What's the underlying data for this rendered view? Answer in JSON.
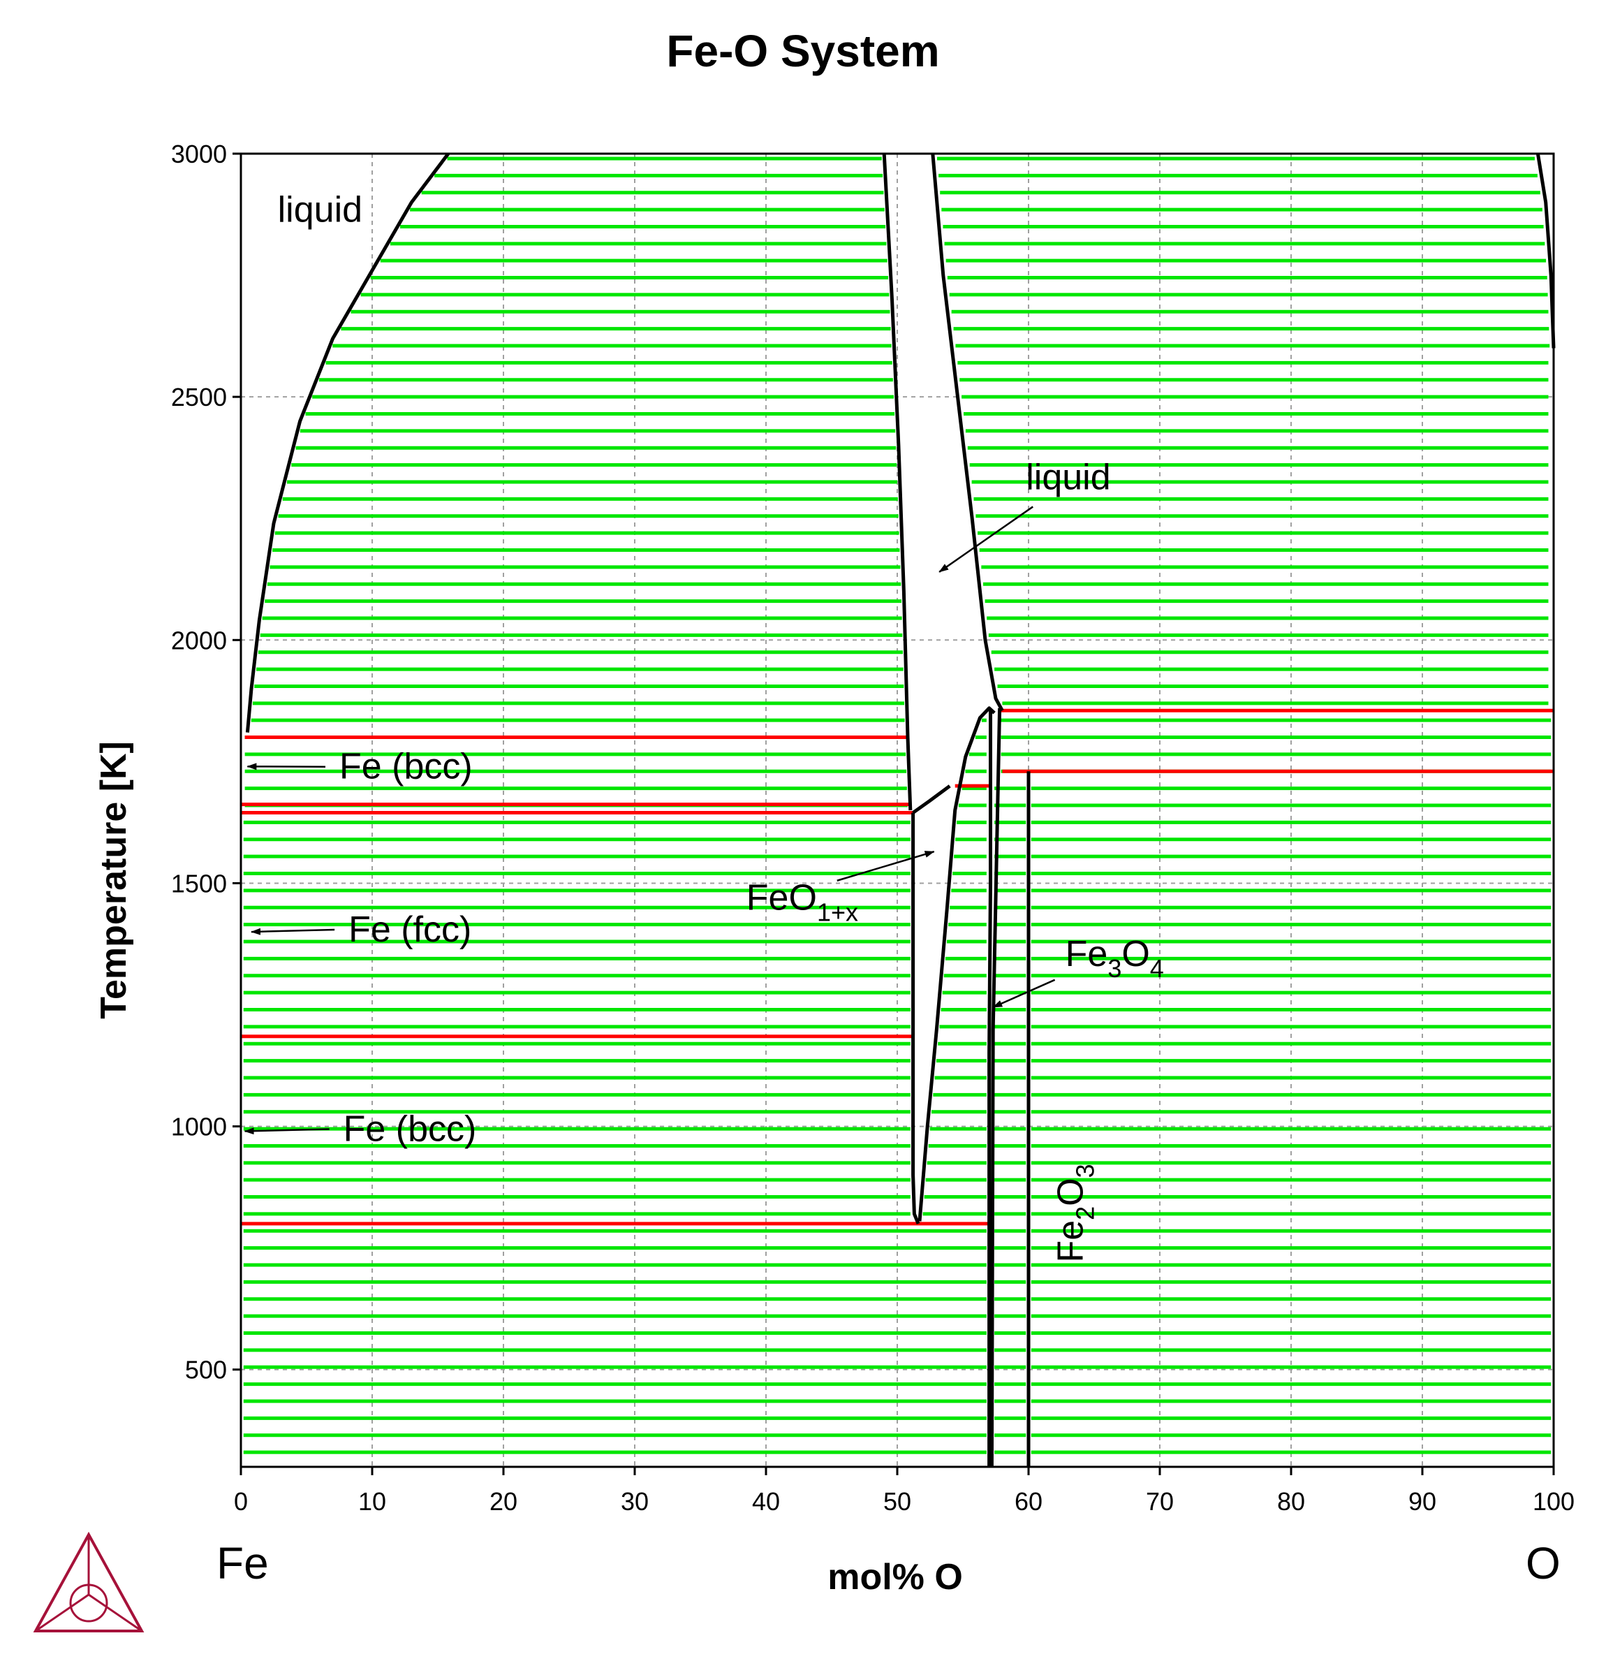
{
  "chart_data": {
    "type": "phase-diagram",
    "title": "Fe-O System",
    "xlabel": "mol% O",
    "ylabel": "Temperature [K]",
    "xlim": [
      0,
      100
    ],
    "ylim": [
      300,
      3000
    ],
    "x_ticks": [
      0,
      10,
      20,
      30,
      40,
      50,
      60,
      70,
      80,
      90,
      100
    ],
    "y_ticks": [
      500,
      1000,
      1500,
      2000,
      2500,
      3000
    ],
    "grid": true,
    "end_labels": {
      "left": "Fe",
      "right": "O"
    },
    "colors": {
      "tie_lines": "#00e600",
      "invariant_lines": "#ff0000",
      "boundaries": "#000000",
      "grid": "#a0a0a0",
      "logo": "#a6123a"
    },
    "annotations": [
      {
        "id": "liquid-fe",
        "text": "liquid",
        "x": 2.8,
        "y": 2860
      },
      {
        "id": "liquid-oxide",
        "text": "liquid",
        "x": 59.8,
        "y": 2310,
        "arrow_to": [
          53.2,
          2140
        ]
      },
      {
        "id": "fe-bcc-high",
        "text": "Fe (bcc)",
        "x": 7.5,
        "y": 1715,
        "arrow_to": [
          0.5,
          1740
        ]
      },
      {
        "id": "fe-fcc",
        "text": "Fe (fcc)",
        "x": 8.2,
        "y": 1380,
        "arrow_to": [
          0.8,
          1400
        ]
      },
      {
        "id": "fe-bcc-low",
        "text": "Fe (bcc)",
        "x": 7.8,
        "y": 970,
        "arrow_to": [
          0.3,
          990
        ]
      },
      {
        "id": "feo",
        "base": "FeO",
        "subscript": "1+x",
        "x": 38.5,
        "y": 1445,
        "arrow_to": [
          52.8,
          1565
        ]
      },
      {
        "id": "fe3o4",
        "parts": [
          "Fe",
          "3",
          "O",
          "4"
        ],
        "x": 62.8,
        "y": 1330,
        "arrow_to": [
          57.3,
          1245
        ]
      },
      {
        "id": "fe2o3",
        "parts": [
          "Fe",
          "2",
          "O",
          "3"
        ],
        "x": 62.0,
        "y": 720,
        "rotated": true
      }
    ],
    "invariant_lines": [
      {
        "T": 1800,
        "x1": 0.3,
        "x2": 50.8
      },
      {
        "T": 1662,
        "x1": 0,
        "x2": 51.0
      },
      {
        "T": 1645,
        "x1": 0,
        "x2": 51.2
      },
      {
        "T": 1185,
        "x1": 0,
        "x2": 51.2
      },
      {
        "T": 800,
        "x1": 0,
        "x2": 57.1
      },
      {
        "T": 1700,
        "x1": 54.4,
        "x2": 57.1
      },
      {
        "T": 1855,
        "x1": 57.7,
        "x2": 100
      },
      {
        "T": 1730,
        "x1": 58.0,
        "x2": 100
      }
    ],
    "boundaries": [
      {
        "id": "fe-liquidus",
        "points": [
          [
            0.5,
            1810
          ],
          [
            0.8,
            1900
          ],
          [
            1.4,
            2040
          ],
          [
            2.5,
            2240
          ],
          [
            4.5,
            2450
          ],
          [
            7.0,
            2620
          ],
          [
            10.0,
            2760
          ],
          [
            13.0,
            2900
          ],
          [
            15.8,
            3000
          ]
        ]
      },
      {
        "id": "feo-liquid-left",
        "points": [
          [
            49.0,
            3000
          ],
          [
            49.6,
            2700
          ],
          [
            50.1,
            2400
          ],
          [
            50.5,
            2100
          ],
          [
            50.8,
            1800
          ],
          [
            51.0,
            1650
          ]
        ]
      },
      {
        "id": "oxide-liquid-left",
        "points": [
          [
            52.7,
            3000
          ],
          [
            53.5,
            2750
          ],
          [
            54.6,
            2500
          ],
          [
            55.7,
            2250
          ],
          [
            56.7,
            2000
          ],
          [
            57.5,
            1880
          ],
          [
            58.0,
            1855
          ]
        ]
      },
      {
        "id": "feo-right-top",
        "points": [
          [
            51.2,
            1645
          ],
          [
            52.5,
            1670
          ],
          [
            54.0,
            1700
          ]
        ]
      },
      {
        "id": "feo-left",
        "points": [
          [
            51.2,
            1645
          ],
          [
            51.2,
            1400
          ],
          [
            51.2,
            1000
          ],
          [
            51.2,
            900
          ],
          [
            51.3,
            820
          ],
          [
            51.6,
            800
          ]
        ]
      },
      {
        "id": "feo-right",
        "points": [
          [
            51.7,
            805
          ],
          [
            52.3,
            1000
          ],
          [
            53.0,
            1200
          ],
          [
            53.8,
            1450
          ],
          [
            54.4,
            1650
          ],
          [
            55.2,
            1760
          ],
          [
            56.3,
            1840
          ],
          [
            57.0,
            1860
          ],
          [
            57.4,
            1850
          ]
        ]
      },
      {
        "id": "fe3o4-left",
        "points": [
          [
            57.0,
            300
          ],
          [
            57.0,
            1150
          ],
          [
            57.1,
            1500
          ],
          [
            57.1,
            1855
          ]
        ]
      },
      {
        "id": "fe3o4-right",
        "points": [
          [
            57.2,
            300
          ],
          [
            57.3,
            1200
          ],
          [
            57.6,
            1600
          ],
          [
            57.8,
            1860
          ]
        ]
      },
      {
        "id": "fe2o3-line",
        "points": [
          [
            60.0,
            300
          ],
          [
            60.0,
            1730
          ]
        ]
      },
      {
        "id": "o-liquidus",
        "points": [
          [
            98.8,
            3000
          ],
          [
            99.4,
            2900
          ],
          [
            99.8,
            2750
          ],
          [
            100.0,
            2600
          ]
        ]
      }
    ]
  }
}
